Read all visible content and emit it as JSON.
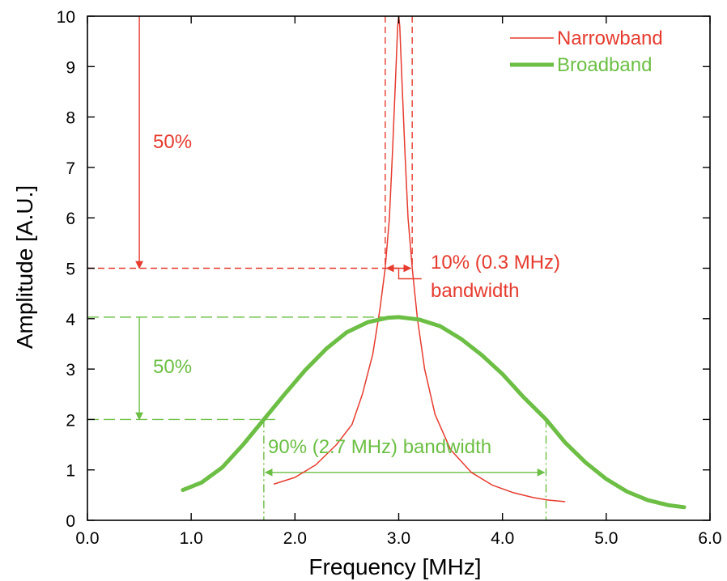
{
  "chart_data": {
    "type": "line",
    "title": "",
    "xlabel": "Frequency [MHz]",
    "ylabel": "Amplitude [A.U.]",
    "xlim": [
      0,
      6
    ],
    "ylim": [
      0,
      10
    ],
    "x_ticks": [
      "0.0",
      "1.0",
      "2.0",
      "3.0",
      "4.0",
      "5.0",
      "6.0"
    ],
    "y_ticks": [
      "0",
      "1",
      "2",
      "3",
      "4",
      "5",
      "6",
      "7",
      "8",
      "9",
      "10"
    ],
    "grid": false,
    "legend_position": "top-right",
    "series": [
      {
        "name": "Narrowband",
        "color": "#e63b2e",
        "line_style": "thin",
        "points": [
          [
            1.8,
            0.72
          ],
          [
            2.0,
            0.85
          ],
          [
            2.2,
            1.1
          ],
          [
            2.4,
            1.5
          ],
          [
            2.55,
            1.9
          ],
          [
            2.65,
            2.5
          ],
          [
            2.75,
            3.3
          ],
          [
            2.82,
            4.2
          ],
          [
            2.87,
            5.0
          ],
          [
            2.91,
            6.0
          ],
          [
            2.94,
            7.3
          ],
          [
            2.97,
            8.8
          ],
          [
            2.99,
            9.8
          ],
          [
            3.0,
            10.0
          ],
          [
            3.01,
            9.8
          ],
          [
            3.03,
            8.8
          ],
          [
            3.06,
            7.3
          ],
          [
            3.09,
            6.0
          ],
          [
            3.13,
            5.0
          ],
          [
            3.18,
            4.0
          ],
          [
            3.25,
            3.0
          ],
          [
            3.35,
            2.1
          ],
          [
            3.5,
            1.4
          ],
          [
            3.7,
            0.95
          ],
          [
            3.9,
            0.7
          ],
          [
            4.1,
            0.55
          ],
          [
            4.3,
            0.45
          ],
          [
            4.45,
            0.4
          ],
          [
            4.6,
            0.37
          ]
        ]
      },
      {
        "name": "Broadband",
        "color": "#6cbf44",
        "line_style": "thick",
        "points": [
          [
            0.92,
            0.6
          ],
          [
            1.1,
            0.75
          ],
          [
            1.3,
            1.05
          ],
          [
            1.5,
            1.5
          ],
          [
            1.7,
            2.0
          ],
          [
            1.9,
            2.5
          ],
          [
            2.1,
            2.98
          ],
          [
            2.3,
            3.4
          ],
          [
            2.5,
            3.73
          ],
          [
            2.7,
            3.93
          ],
          [
            2.9,
            4.02
          ],
          [
            3.0,
            4.03
          ],
          [
            3.2,
            3.98
          ],
          [
            3.4,
            3.85
          ],
          [
            3.6,
            3.6
          ],
          [
            3.8,
            3.28
          ],
          [
            4.0,
            2.9
          ],
          [
            4.2,
            2.45
          ],
          [
            4.42,
            2.0
          ],
          [
            4.6,
            1.55
          ],
          [
            4.8,
            1.15
          ],
          [
            5.0,
            0.82
          ],
          [
            5.2,
            0.57
          ],
          [
            5.4,
            0.4
          ],
          [
            5.6,
            0.3
          ],
          [
            5.75,
            0.26
          ]
        ]
      }
    ],
    "annotations": {
      "narrow_half_label": "50%",
      "broad_half_label": "50%",
      "narrow_bw_line1": "10% (0.3 MHz)",
      "narrow_bw_line2": "bandwidth",
      "broad_bw": "90% (2.7 MHz) bandwidth",
      "narrow_peak": 10,
      "narrow_half": 5,
      "narrow_f1": 2.87,
      "narrow_f2": 3.13,
      "broad_peak": 4.03,
      "broad_half": 2.0,
      "broad_f1": 1.7,
      "broad_f2": 4.42,
      "arrow_x": 0.5
    }
  }
}
